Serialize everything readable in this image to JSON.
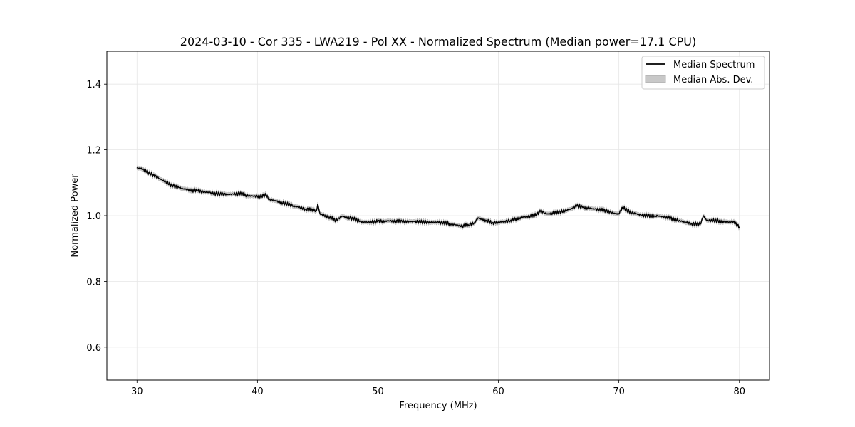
{
  "chart_data": {
    "type": "line",
    "title": "2024-03-10 - Cor 335 - LWA219 - Pol XX - Normalized Spectrum (Median power=17.1 CPU)",
    "xlabel": "Frequency (MHz)",
    "ylabel": "Normalized Power",
    "xlim": [
      27.5,
      82.5
    ],
    "ylim": [
      0.5,
      1.5
    ],
    "xticks": [
      30,
      40,
      50,
      60,
      70,
      80
    ],
    "xtick_labels": [
      "30",
      "40",
      "50",
      "60",
      "70",
      "80"
    ],
    "yticks": [
      0.6,
      0.8,
      1.0,
      1.2,
      1.4
    ],
    "ytick_labels": [
      "0.6",
      "0.8",
      "1.0",
      "1.2",
      "1.4"
    ],
    "grid": true,
    "legend_position": "top-right",
    "legend": [
      "Median Spectrum",
      "Median Abs. Dev."
    ],
    "series": [
      {
        "name": "Median Spectrum",
        "color": "#000000",
        "x": [
          30.0,
          30.5,
          31.0,
          31.5,
          32.0,
          32.5,
          33.0,
          33.5,
          34.0,
          35.0,
          36.0,
          37.0,
          38.0,
          38.5,
          39.0,
          40.0,
          40.7,
          41.0,
          42.0,
          43.0,
          44.0,
          44.9,
          45.0,
          45.2,
          46.0,
          46.5,
          47.0,
          48.0,
          48.5,
          49.0,
          50.0,
          51.0,
          52.0,
          53.0,
          54.0,
          55.0,
          56.0,
          57.0,
          57.5,
          58.0,
          58.3,
          59.0,
          59.5,
          60.0,
          60.5,
          61.0,
          62.0,
          63.0,
          63.5,
          64.0,
          65.0,
          66.0,
          66.5,
          67.0,
          68.0,
          69.0,
          69.5,
          70.0,
          70.3,
          71.0,
          72.0,
          73.0,
          74.0,
          75.0,
          76.0,
          76.8,
          77.0,
          77.3,
          78.0,
          79.0,
          79.5,
          80.0
        ],
        "y": [
          1.145,
          1.142,
          1.13,
          1.12,
          1.11,
          1.1,
          1.09,
          1.085,
          1.08,
          1.075,
          1.07,
          1.065,
          1.065,
          1.068,
          1.062,
          1.058,
          1.062,
          1.05,
          1.04,
          1.03,
          1.02,
          1.015,
          1.035,
          1.005,
          0.995,
          0.985,
          0.998,
          0.99,
          0.982,
          0.98,
          0.982,
          0.984,
          0.982,
          0.982,
          0.98,
          0.98,
          0.975,
          0.968,
          0.972,
          0.978,
          0.993,
          0.985,
          0.978,
          0.98,
          0.982,
          0.985,
          0.995,
          1.0,
          1.015,
          1.005,
          1.01,
          1.02,
          1.03,
          1.025,
          1.02,
          1.015,
          1.008,
          1.005,
          1.025,
          1.01,
          1.0,
          1.0,
          0.995,
          0.985,
          0.975,
          0.975,
          1.0,
          0.985,
          0.985,
          0.98,
          0.982,
          0.965
        ]
      },
      {
        "name": "Median Abs. Dev.",
        "color": "#c8c8c8",
        "band_halfwidth": 0.006
      }
    ]
  }
}
